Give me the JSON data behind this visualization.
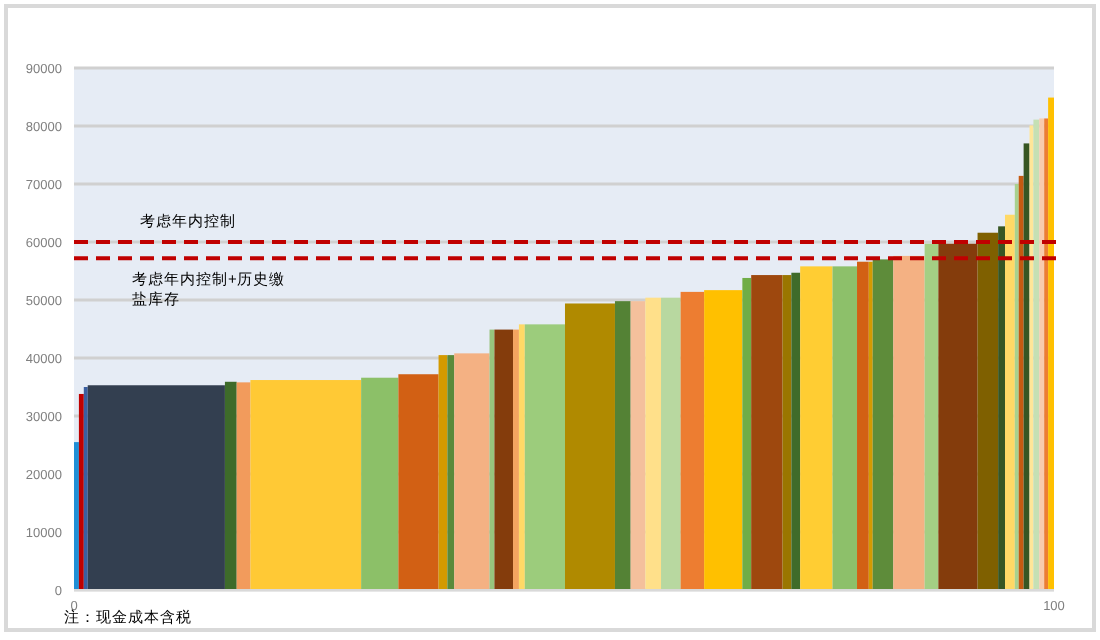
{
  "chart_data": {
    "type": "histogram",
    "bins": [
      0,
      0.5,
      1.0,
      1.4,
      15.4,
      16.6,
      18.0,
      29.3,
      33.1,
      37.2,
      38.1,
      38.8,
      42.4,
      42.9,
      44.8,
      45.4,
      46.0,
      50.1,
      55.2,
      56.8,
      58.3,
      59.9,
      61.9,
      64.3,
      68.2,
      69.1,
      72.3,
      73.2,
      74.1,
      77.4,
      79.9,
      81.1,
      81.5,
      83.6,
      86.8,
      88.2,
      92.2,
      94.3,
      95.0,
      96.0,
      96.4,
      96.9,
      97.5,
      97.9,
      98.5,
      99.0,
      99.4,
      100
    ],
    "values": [
      25500,
      33800,
      35000,
      35300,
      35900,
      35800,
      36200,
      36600,
      37200,
      40500,
      40500,
      40800,
      44900,
      44900,
      44900,
      45800,
      45800,
      49400,
      49800,
      49800,
      50400,
      50400,
      51400,
      51700,
      53800,
      54300,
      54300,
      54700,
      55800,
      55800,
      56600,
      56600,
      57000,
      57600,
      59700,
      59700,
      61600,
      62700,
      64700,
      70000,
      71400,
      77000,
      80100,
      81100,
      81300,
      81300,
      84900
    ],
    "colors": [
      "#1f8fd6",
      "#c00000",
      "#3a5fa0",
      "#333f50",
      "#3e6b2a",
      "#f29b5c",
      "#ffc935",
      "#8cc068",
      "#d26014",
      "#d49a00",
      "#5a8a3a",
      "#f4b183",
      "#98c47c",
      "#843c0c",
      "#f4a460",
      "#ffd966",
      "#9ccc7c",
      "#b08a00",
      "#548235",
      "#f4c09c",
      "#ffe08a",
      "#b8d8a0",
      "#ed7d31",
      "#ffc000",
      "#70ad47",
      "#9e480e",
      "#9a7600",
      "#3f6b2a",
      "#ffcd33",
      "#8dc06a",
      "#d26014",
      "#d49a00",
      "#5e8c3a",
      "#f4b183",
      "#a4cf84",
      "#843c0c",
      "#7f6000",
      "#375623",
      "#ffd966",
      "#a9d18e",
      "#c55a11",
      "#375623",
      "#ffe699",
      "#c5e0b4",
      "#f8cbad",
      "#ed7d31",
      "#ffc000"
    ],
    "xlim": [
      0,
      100
    ],
    "xticks": [
      0,
      100
    ],
    "ylim": [
      0,
      90000
    ],
    "yticks": [
      0,
      10000,
      20000,
      30000,
      40000,
      50000,
      60000,
      70000,
      80000,
      90000
    ],
    "grid": "y",
    "ref_lines": [
      {
        "axis": "y",
        "value": 60000,
        "label": "考虑年内控制",
        "color": "#c00000",
        "line_style": "dashed"
      },
      {
        "axis": "y",
        "value": 57200,
        "label": "考虑年内控制+历史缴盐库存",
        "color": "#c00000",
        "line_style": "dashed"
      }
    ],
    "annotations": [
      "注：现金成本含税"
    ]
  }
}
